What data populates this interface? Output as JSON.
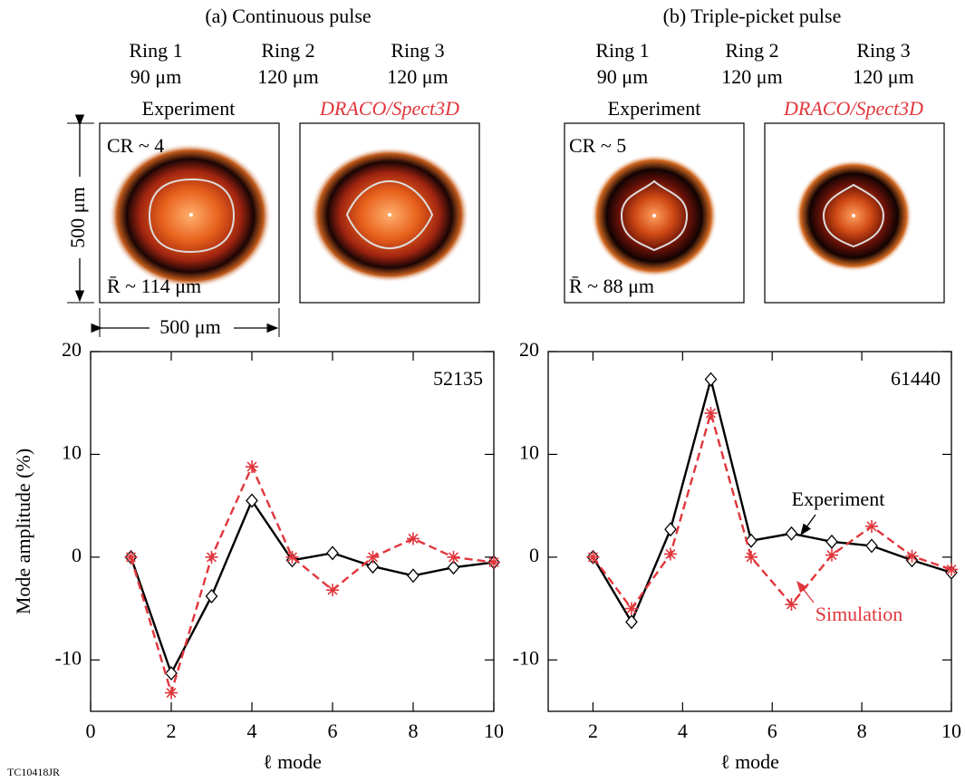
{
  "figure": {
    "panels": [
      {
        "title": "(a) Continuous pulse",
        "rings": [
          {
            "name": "Ring 1",
            "size": "90 μm"
          },
          {
            "name": "Ring 2",
            "size": "120 μm"
          },
          {
            "name": "Ring 3",
            "size": "120 μm"
          }
        ],
        "experiment_label": "Experiment",
        "simulation_label": "DRACO/Spect3D",
        "cr": "CR ~ 4",
        "radius": "R̄ ~ 114 μm"
      },
      {
        "title": "(b) Triple-picket pulse",
        "rings": [
          {
            "name": "Ring 1",
            "size": "90 μm"
          },
          {
            "name": "Ring 2",
            "size": "120 μm"
          },
          {
            "name": "Ring 3",
            "size": "120 μm"
          }
        ],
        "experiment_label": "Experiment",
        "simulation_label": "DRACO/Spect3D",
        "cr": "CR ~ 5",
        "radius": "R̄ ~ 88 μm"
      }
    ],
    "scale_label": "500 μm",
    "figure_id": "TC10418JR"
  },
  "chart_data": [
    {
      "type": "line",
      "ylabel": "Mode amplitude (%)",
      "xlabel": "ℓ mode",
      "shot": "52135",
      "x": [
        1,
        2,
        3,
        4,
        5,
        6,
        7,
        8,
        9,
        10
      ],
      "series": [
        {
          "name": "Experiment",
          "color": "#000000",
          "marker": "diamond",
          "dashed": false,
          "values": [
            0,
            -11.3,
            -3.8,
            5.5,
            -0.3,
            0.4,
            -0.9,
            -1.8,
            -1.0,
            -0.5
          ]
        },
        {
          "name": "Simulation",
          "color": "#e0363c",
          "marker": "asterisk",
          "dashed": true,
          "values": [
            0,
            -13.2,
            0,
            8.8,
            0,
            -3.2,
            0,
            1.8,
            0,
            -0.5
          ]
        }
      ],
      "xlim": [
        0,
        10
      ],
      "xticks": [
        0,
        2,
        4,
        6,
        8,
        10
      ],
      "ylim": [
        -15,
        20
      ],
      "yticks": [
        -10,
        0,
        10,
        20
      ]
    },
    {
      "type": "line",
      "xlabel": "ℓ mode",
      "shot": "61440",
      "x": [
        2,
        2.86,
        3.73,
        4.63,
        5.53,
        6.43,
        7.33,
        8.22,
        9.12,
        10
      ],
      "series": [
        {
          "name": "Experiment",
          "color": "#000000",
          "marker": "diamond",
          "dashed": false,
          "values": [
            0,
            -6.3,
            2.7,
            17.3,
            1.6,
            2.3,
            1.5,
            1.1,
            -0.3,
            -1.5
          ]
        },
        {
          "name": "Simulation",
          "color": "#e0363c",
          "marker": "asterisk",
          "dashed": true,
          "values": [
            0,
            -5.0,
            0.3,
            14.0,
            0,
            -4.6,
            0.2,
            3.0,
            0.1,
            -1.2
          ]
        }
      ],
      "xlim": [
        1,
        10
      ],
      "xticks": [
        2,
        4,
        6,
        8,
        10
      ],
      "ylim": [
        -15,
        20
      ],
      "yticks": [
        -10,
        0,
        10,
        20
      ]
    }
  ]
}
